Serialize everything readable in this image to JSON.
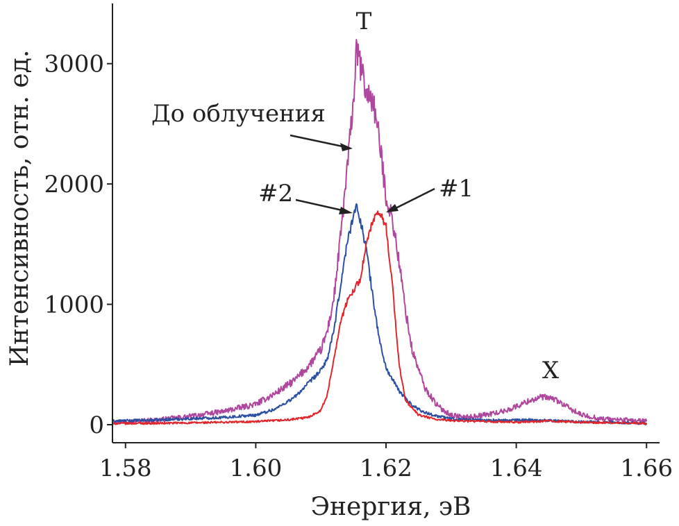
{
  "chart_data": {
    "type": "line",
    "title": "",
    "xlabel": "Энергия, эВ",
    "ylabel": "Интенсивность, отн. ед.",
    "xlim": [
      1.578,
      1.662
    ],
    "ylim": [
      -150,
      3500
    ],
    "x_ticks": [
      1.58,
      1.6,
      1.62,
      1.64,
      1.66
    ],
    "x_tick_labels": [
      "1.58",
      "1.60",
      "1.62",
      "1.64",
      "1.66"
    ],
    "y_ticks": [
      0,
      1000,
      2000,
      3000
    ],
    "y_tick_labels": [
      "0",
      "1000",
      "2000",
      "3000"
    ],
    "series": [
      {
        "name": "До облучения",
        "color": "#b0479f",
        "x": [
          1.578,
          1.585,
          1.59,
          1.595,
          1.6,
          1.603,
          1.606,
          1.608,
          1.61,
          1.611,
          1.612,
          1.613,
          1.614,
          1.615,
          1.6155,
          1.616,
          1.617,
          1.618,
          1.619,
          1.62,
          1.621,
          1.622,
          1.623,
          1.624,
          1.626,
          1.628,
          1.63,
          1.632,
          1.635,
          1.638,
          1.64,
          1.642,
          1.644,
          1.646,
          1.648,
          1.65,
          1.653,
          1.656,
          1.66
        ],
        "values": [
          20,
          40,
          70,
          110,
          170,
          260,
          370,
          480,
          620,
          780,
          1050,
          1550,
          2100,
          2700,
          3120,
          3000,
          2750,
          2700,
          2350,
          1900,
          1700,
          1350,
          950,
          620,
          300,
          150,
          80,
          60,
          80,
          110,
          150,
          200,
          230,
          210,
          140,
          80,
          50,
          40,
          30
        ]
      },
      {
        "name": "#2",
        "color": "#2a4ea0",
        "x": [
          1.578,
          1.585,
          1.59,
          1.595,
          1.6,
          1.603,
          1.606,
          1.608,
          1.61,
          1.611,
          1.612,
          1.613,
          1.614,
          1.615,
          1.6155,
          1.616,
          1.617,
          1.618,
          1.619,
          1.62,
          1.622,
          1.624,
          1.626,
          1.628,
          1.63,
          1.634,
          1.638,
          1.642,
          1.645,
          1.65,
          1.655,
          1.66
        ],
        "values": [
          30,
          40,
          50,
          60,
          80,
          130,
          230,
          340,
          450,
          550,
          780,
          1150,
          1500,
          1750,
          1800,
          1720,
          1450,
          1050,
          700,
          470,
          280,
          160,
          100,
          70,
          50,
          40,
          35,
          40,
          35,
          25,
          20,
          10
        ]
      },
      {
        "name": "#1",
        "color": "#e0262b",
        "x": [
          1.578,
          1.585,
          1.59,
          1.595,
          1.6,
          1.605,
          1.608,
          1.61,
          1.611,
          1.612,
          1.613,
          1.614,
          1.615,
          1.616,
          1.617,
          1.618,
          1.619,
          1.62,
          1.621,
          1.622,
          1.623,
          1.625,
          1.628,
          1.632,
          1.636,
          1.64,
          1.645,
          1.65,
          1.655,
          1.66
        ],
        "values": [
          10,
          12,
          15,
          20,
          25,
          40,
          60,
          120,
          250,
          550,
          850,
          1020,
          1120,
          1200,
          1500,
          1700,
          1760,
          1650,
          1150,
          500,
          200,
          80,
          40,
          30,
          25,
          20,
          30,
          20,
          15,
          10
        ]
      }
    ],
    "annotations": [
      {
        "text": "T"
      },
      {
        "text": "X"
      },
      {
        "text": "До облучения"
      },
      {
        "text": "#2"
      },
      {
        "text": "#1"
      }
    ]
  }
}
